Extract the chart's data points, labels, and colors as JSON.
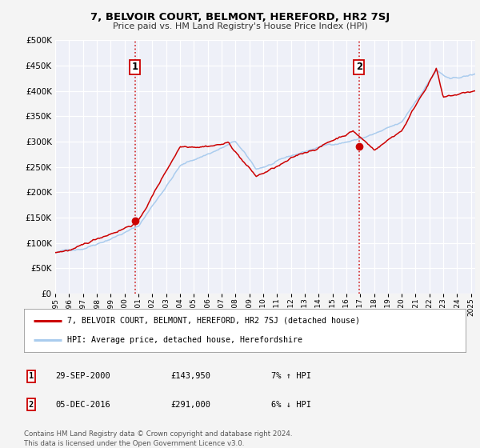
{
  "title": "7, BELVOIR COURT, BELMONT, HEREFORD, HR2 7SJ",
  "subtitle": "Price paid vs. HM Land Registry's House Price Index (HPI)",
  "xlim": [
    1995,
    2025.3
  ],
  "ylim": [
    0,
    500000
  ],
  "yticks": [
    0,
    50000,
    100000,
    150000,
    200000,
    250000,
    300000,
    350000,
    400000,
    450000,
    500000
  ],
  "hpi_color": "#aaccee",
  "price_color": "#cc0000",
  "sale1_x": 2000.75,
  "sale1_y": 143950,
  "sale2_x": 2016.92,
  "sale2_y": 291000,
  "legend_price_label": "7, BELVOIR COURT, BELMONT, HEREFORD, HR2 7SJ (detached house)",
  "legend_hpi_label": "HPI: Average price, detached house, Herefordshire",
  "table_row1": [
    "1",
    "29-SEP-2000",
    "£143,950",
    "7% ↑ HPI"
  ],
  "table_row2": [
    "2",
    "05-DEC-2016",
    "£291,000",
    "6% ↓ HPI"
  ],
  "footnote1": "Contains HM Land Registry data © Crown copyright and database right 2024.",
  "footnote2": "This data is licensed under the Open Government Licence v3.0.",
  "fig_bg": "#f4f4f4",
  "plot_bg": "#eef0f8",
  "grid_color": "#ffffff"
}
